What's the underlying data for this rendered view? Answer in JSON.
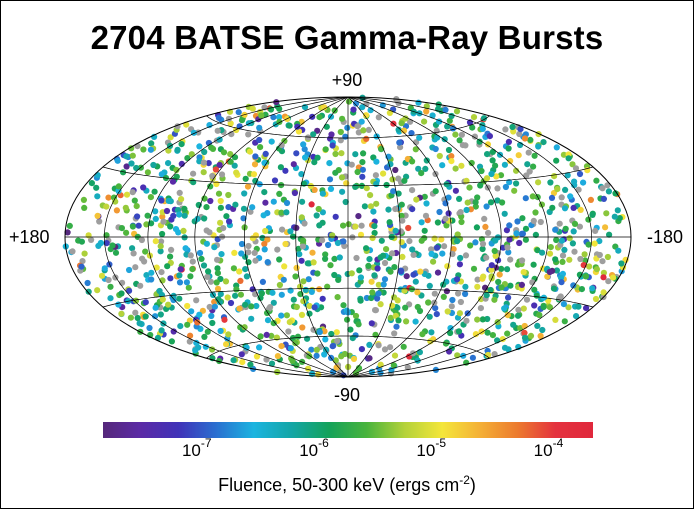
{
  "chart_data": {
    "type": "scatter",
    "title": "2704 BATSE Gamma-Ray Bursts",
    "projection": "aitoff",
    "axis_labels": {
      "north": "+90",
      "south": "-90",
      "left": "+180",
      "right": "-180"
    },
    "graticule": {
      "longitude_step_deg": 30,
      "latitude_step_deg": 30
    },
    "colorbar": {
      "label_prefix": "Fluence, 50-300 keV (ergs cm",
      "label_exp": "-2",
      "label_suffix": ")",
      "log_range": [
        -7.8,
        -3.62
      ],
      "ticks": [
        {
          "base": "10",
          "exp": "-7",
          "log": -7
        },
        {
          "base": "10",
          "exp": "-6",
          "log": -6
        },
        {
          "base": "10",
          "exp": "-5",
          "log": -5
        },
        {
          "base": "10",
          "exp": "-4",
          "log": -4
        }
      ],
      "colors": [
        "#55287a",
        "#5b2aa6",
        "#4032b8",
        "#2a6fd0",
        "#1bb4e0",
        "#14a6a6",
        "#14a25a",
        "#49b43c",
        "#b4d23a",
        "#f4e63a",
        "#f4b036",
        "#ec7a2e",
        "#e4323e",
        "#e0283c"
      ],
      "no_fluence_color": "#9e9e9e"
    },
    "bursts_total": 2704,
    "bursts_rendered": 1600,
    "point_color_mix": {
      "no_fluence_fraction": 0.14,
      "log_fluence_median": -5.9,
      "log_fluence_spread": 0.75
    }
  }
}
